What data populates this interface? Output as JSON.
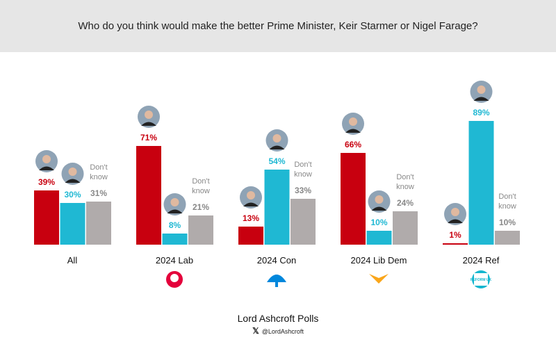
{
  "title": "Who do you think would make the better Prime Minister, Keir Starmer or Nigel Farage?",
  "chart_data": {
    "type": "bar",
    "title": "Who do you think would make the better Prime Minister, Keir Starmer or Nigel Farage?",
    "categories": [
      "All",
      "2024 Lab",
      "2024 Con",
      "2024 Lib Dem",
      "2024 Ref"
    ],
    "series": [
      {
        "name": "Keir Starmer",
        "color": "#c8000f",
        "values": [
          39,
          71,
          13,
          66,
          1
        ]
      },
      {
        "name": "Nigel Farage",
        "color": "#1fb8d3",
        "values": [
          30,
          8,
          54,
          10,
          89
        ]
      },
      {
        "name": "Don't know",
        "color": "#b0abab",
        "values": [
          31,
          21,
          33,
          24,
          10
        ]
      }
    ],
    "dont_know_label": "Don't know",
    "party_logos": [
      "labour-rose-icon",
      "conservative-tree-icon",
      "libdem-bird-icon",
      "reform-uk-icon"
    ],
    "reform_logo_text": "REFORM UK",
    "ylim": [
      0,
      100
    ]
  },
  "footer": {
    "brand": "Lord Ashcroft Polls",
    "handle": "@LordAshcroft",
    "x_icon": "𝕏"
  }
}
